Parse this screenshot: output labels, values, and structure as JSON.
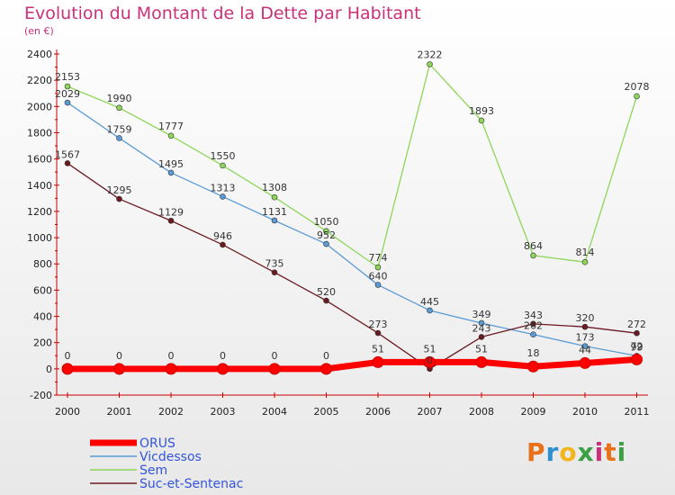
{
  "title": "Evolution du Montant de la Dette par Habitant",
  "subtitle": "(en €)",
  "logo": {
    "text": "Proxiti",
    "colors": [
      "#e8711a",
      "#2d8fd0",
      "#f2b61c",
      "#3aa043",
      "#c8327a",
      "#e8711a",
      "#3aa043"
    ]
  },
  "colors": {
    "title": "#c8327a"
  },
  "chart_data": {
    "type": "line",
    "title": "Evolution du Montant de la Dette par Habitant",
    "subtitle": "(en €)",
    "xlabel": "",
    "ylabel": "",
    "categories": [
      "2000",
      "2001",
      "2002",
      "2003",
      "2004",
      "2005",
      "2006",
      "2007",
      "2008",
      "2009",
      "2010",
      "2011"
    ],
    "ylim": [
      -200,
      2400
    ],
    "yticks": [
      -200,
      0,
      200,
      400,
      600,
      800,
      1000,
      1200,
      1400,
      1600,
      1800,
      2000,
      2200,
      2400
    ],
    "grid": false,
    "legend_position": "bottom-left",
    "series": [
      {
        "name": "ORUS",
        "color": "#ff0000",
        "values": [
          0,
          0,
          0,
          0,
          0,
          0,
          51,
          51,
          51,
          18,
          44,
          72
        ]
      },
      {
        "name": "Vicdessos",
        "color": "#5b9bd5",
        "values": [
          2029,
          1759,
          1495,
          1313,
          1131,
          952,
          640,
          445,
          349,
          262,
          173,
          99
        ]
      },
      {
        "name": "Sem",
        "color": "#8ed65a",
        "values": [
          2153,
          1990,
          1777,
          1550,
          1308,
          1050,
          774,
          2322,
          1893,
          864,
          814,
          2078
        ]
      },
      {
        "name": "Suc-et-Sentenac",
        "color": "#6b1a22",
        "values": [
          1567,
          1295,
          1129,
          946,
          735,
          520,
          273,
          0,
          243,
          343,
          320,
          272
        ]
      }
    ],
    "data_labels": [
      {
        "series": "ORUS",
        "labels": [
          "0",
          "0",
          "0",
          "0",
          "0",
          "0",
          "51",
          "51",
          "51",
          "18",
          "44",
          "72"
        ]
      },
      {
        "series": "Vicdessos",
        "labels": [
          "2029",
          "1759",
          "1495",
          "1313",
          "1131",
          "952",
          "640",
          "445",
          "349",
          "262",
          "173",
          "99"
        ]
      },
      {
        "series": "Sem",
        "labels": [
          "2153",
          "1990",
          "1777",
          "1550",
          "1308",
          "1050",
          "774",
          "2322",
          "1893",
          "864",
          "814",
          "2078"
        ]
      },
      {
        "series": "Suc-et-Sentenac",
        "labels": [
          "1567",
          "1295",
          "1129",
          "946",
          "735",
          "520",
          "273",
          "0",
          "243",
          "343",
          "320",
          "272"
        ]
      }
    ]
  }
}
